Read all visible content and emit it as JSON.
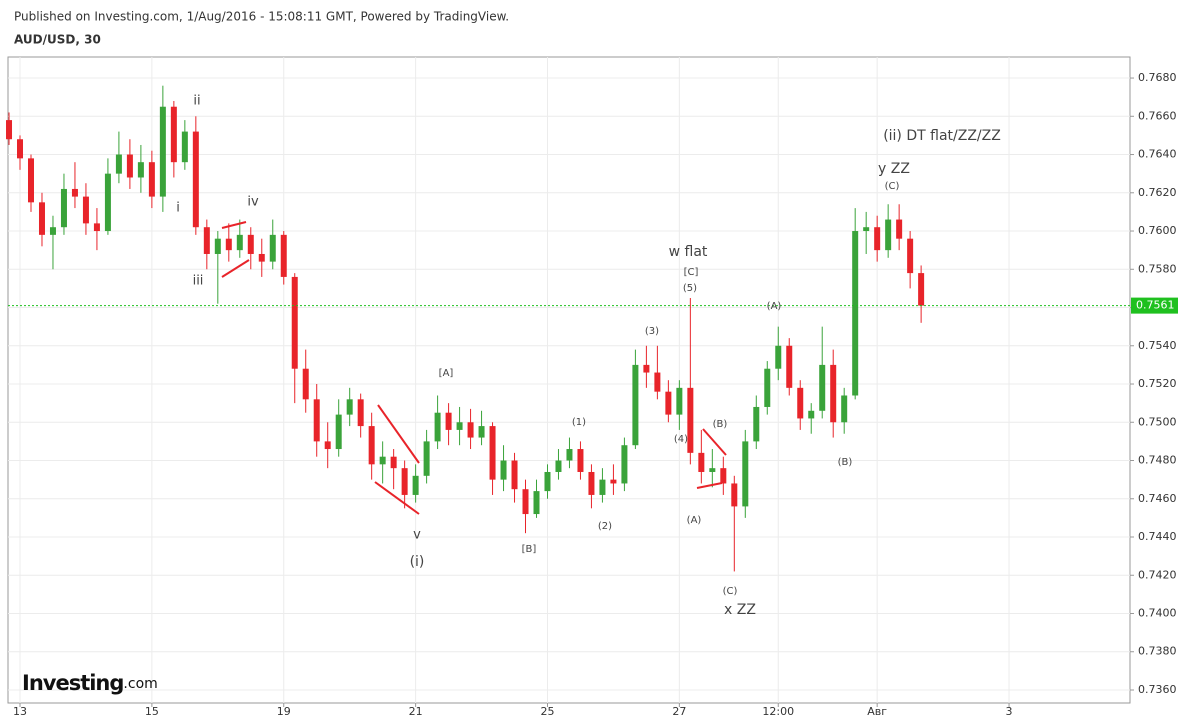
{
  "chart_data": {
    "type": "candlestick",
    "subtitle": "Published on Investing.com, 1/Aug/2016 - 15:08:11 GMT, Powered by TradingView.",
    "title": "AUD/USD, 30",
    "logo": {
      "name": "Investing",
      "suffix": ".com"
    },
    "up_color": "#3aa33a",
    "down_color": "#e8242a",
    "grid": true,
    "xlim": [
      -4.37,
      404.03
    ],
    "ylim": [
      0.73532,
      0.7691
    ],
    "xticks": [
      {
        "value": 0,
        "label": "13"
      },
      {
        "value": 48,
        "label": "15"
      },
      {
        "value": 96,
        "label": "19"
      },
      {
        "value": 144,
        "label": "21"
      },
      {
        "value": 192,
        "label": "25"
      },
      {
        "value": 240,
        "label": "27"
      },
      {
        "value": 276,
        "label": "12:00"
      },
      {
        "value": 312,
        "label": "Авг"
      },
      {
        "value": 360,
        "label": "3"
      }
    ],
    "yticks": [
      {
        "value": 0.736,
        "label": "0.7360"
      },
      {
        "value": 0.738,
        "label": "0.7380"
      },
      {
        "value": 0.74,
        "label": "0.7400"
      },
      {
        "value": 0.742,
        "label": "0.7420"
      },
      {
        "value": 0.744,
        "label": "0.7440"
      },
      {
        "value": 0.746,
        "label": "0.7460"
      },
      {
        "value": 0.748,
        "label": "0.7480"
      },
      {
        "value": 0.75,
        "label": "0.7500"
      },
      {
        "value": 0.752,
        "label": "0.7520"
      },
      {
        "value": 0.754,
        "label": "0.7540"
      },
      {
        "value": 0.756,
        "label": "0.7560"
      },
      {
        "value": 0.758,
        "label": "0.7580"
      },
      {
        "value": 0.76,
        "label": "0.7600"
      },
      {
        "value": 0.762,
        "label": "0.7620"
      },
      {
        "value": 0.764,
        "label": "0.7640"
      },
      {
        "value": 0.766,
        "label": "0.7660"
      },
      {
        "value": 0.768,
        "label": "0.7680"
      }
    ],
    "last_price": 0.7561,
    "last_price_color": "#1fc01f",
    "x": [
      -4,
      0,
      4,
      8,
      12,
      16,
      20,
      24,
      28,
      32,
      36,
      40,
      44,
      48,
      52,
      56,
      60,
      64,
      68,
      72,
      76,
      80,
      84,
      88,
      92,
      96,
      100,
      104,
      108,
      112,
      116,
      120,
      124,
      128,
      132,
      136,
      140,
      144,
      148,
      152,
      156,
      160,
      164,
      168,
      172,
      176,
      180,
      184,
      188,
      192,
      196,
      200,
      204,
      208,
      212,
      216,
      220,
      224,
      228,
      232,
      236,
      240,
      244,
      248,
      252,
      256,
      260,
      264,
      268,
      272,
      276,
      280,
      284,
      288,
      292,
      296,
      300,
      304,
      308,
      312,
      316,
      320,
      324,
      328
    ],
    "open": [
      0.7658,
      0.7648,
      0.7638,
      0.7615,
      0.7598,
      0.7602,
      0.7622,
      0.7618,
      0.7604,
      0.76,
      0.763,
      0.764,
      0.7628,
      0.7636,
      0.7618,
      0.7665,
      0.7636,
      0.7652,
      0.7602,
      0.7588,
      0.7596,
      0.759,
      0.7598,
      0.7588,
      0.7584,
      0.7598,
      0.7576,
      0.7528,
      0.7512,
      0.749,
      0.7486,
      0.7504,
      0.7512,
      0.7498,
      0.7478,
      0.7482,
      0.7476,
      0.7462,
      0.7472,
      0.749,
      0.7505,
      0.7496,
      0.75,
      0.7492,
      0.7498,
      0.747,
      0.748,
      0.7465,
      0.7452,
      0.7464,
      0.7474,
      0.748,
      0.7486,
      0.7474,
      0.7462,
      0.747,
      0.7468,
      0.7488,
      0.753,
      0.7526,
      0.7516,
      0.7504,
      0.7518,
      0.7484,
      0.7474,
      0.7476,
      0.7468,
      0.7456,
      0.749,
      0.7508,
      0.7528,
      0.754,
      0.7518,
      0.7502,
      0.7506,
      0.753,
      0.75,
      0.7514,
      0.76,
      0.7602,
      0.759,
      0.7606,
      0.7596,
      0.7578
    ],
    "high": [
      0.7662,
      0.765,
      0.764,
      0.762,
      0.7608,
      0.763,
      0.7636,
      0.7625,
      0.7612,
      0.7638,
      0.7652,
      0.7648,
      0.7645,
      0.7642,
      0.7676,
      0.7668,
      0.7658,
      0.766,
      0.7606,
      0.76,
      0.7604,
      0.7606,
      0.7602,
      0.7596,
      0.7606,
      0.76,
      0.7578,
      0.7538,
      0.752,
      0.75,
      0.7512,
      0.7518,
      0.7515,
      0.7505,
      0.749,
      0.7486,
      0.748,
      0.7478,
      0.7496,
      0.7514,
      0.751,
      0.7508,
      0.7507,
      0.7506,
      0.75,
      0.7488,
      0.7484,
      0.747,
      0.747,
      0.7478,
      0.7486,
      0.7492,
      0.749,
      0.7478,
      0.7476,
      0.7478,
      0.7492,
      0.7538,
      0.754,
      0.754,
      0.7522,
      0.7522,
      0.7565,
      0.7496,
      0.7486,
      0.7482,
      0.7472,
      0.7496,
      0.7514,
      0.7532,
      0.755,
      0.7544,
      0.7522,
      0.751,
      0.755,
      0.7538,
      0.7518,
      0.7612,
      0.761,
      0.7608,
      0.7614,
      0.7614,
      0.76,
      0.7582
    ],
    "low": [
      0.7645,
      0.7632,
      0.761,
      0.7592,
      0.758,
      0.7598,
      0.7612,
      0.7598,
      0.759,
      0.7598,
      0.7625,
      0.7622,
      0.762,
      0.7612,
      0.761,
      0.7628,
      0.7632,
      0.7598,
      0.758,
      0.7562,
      0.7584,
      0.7586,
      0.758,
      0.7576,
      0.758,
      0.7572,
      0.751,
      0.7505,
      0.7482,
      0.7476,
      0.7482,
      0.7498,
      0.7492,
      0.747,
      0.7468,
      0.7465,
      0.7455,
      0.7458,
      0.7468,
      0.7486,
      0.7488,
      0.7488,
      0.7486,
      0.7488,
      0.7462,
      0.7464,
      0.7458,
      0.7442,
      0.745,
      0.746,
      0.747,
      0.7476,
      0.747,
      0.7455,
      0.7458,
      0.7462,
      0.7464,
      0.7486,
      0.7518,
      0.7512,
      0.75,
      0.7496,
      0.7478,
      0.7468,
      0.7466,
      0.7462,
      0.7422,
      0.745,
      0.7486,
      0.7504,
      0.7522,
      0.7514,
      0.7496,
      0.7494,
      0.7502,
      0.7492,
      0.7494,
      0.7512,
      0.7588,
      0.7584,
      0.7586,
      0.759,
      0.757,
      0.7552
    ],
    "close": [
      0.7648,
      0.7638,
      0.7615,
      0.7598,
      0.7602,
      0.7622,
      0.7618,
      0.7604,
      0.76,
      0.763,
      0.764,
      0.7628,
      0.7636,
      0.7618,
      0.7665,
      0.7636,
      0.7652,
      0.7602,
      0.7588,
      0.7596,
      0.759,
      0.7598,
      0.7588,
      0.7584,
      0.7598,
      0.7576,
      0.7528,
      0.7512,
      0.749,
      0.7486,
      0.7504,
      0.7512,
      0.7498,
      0.7478,
      0.7482,
      0.7476,
      0.7462,
      0.7472,
      0.749,
      0.7505,
      0.7496,
      0.75,
      0.7492,
      0.7498,
      0.747,
      0.748,
      0.7465,
      0.7452,
      0.7464,
      0.7474,
      0.748,
      0.7486,
      0.7474,
      0.7462,
      0.747,
      0.7468,
      0.7488,
      0.753,
      0.7526,
      0.7516,
      0.7504,
      0.7518,
      0.7484,
      0.7474,
      0.7476,
      0.7468,
      0.7456,
      0.749,
      0.7508,
      0.7528,
      0.754,
      0.7518,
      0.7502,
      0.7506,
      0.753,
      0.75,
      0.7514,
      0.76,
      0.7602,
      0.759,
      0.7606,
      0.7596,
      0.7578,
      0.7561
    ],
    "annotations": [
      "ii",
      "i",
      "iii",
      "iv",
      "v",
      "(i)",
      "[A]",
      "[B]",
      "(1)",
      "(2)",
      "(3)",
      "(4)",
      "(5)",
      "[C]",
      "w flat",
      "(A)",
      "(B)",
      "(C)",
      "x ZZ",
      "(A)",
      "(B)",
      "(C)",
      "y ZZ",
      "(ii) DT flat/ZZ/ZZ"
    ]
  }
}
